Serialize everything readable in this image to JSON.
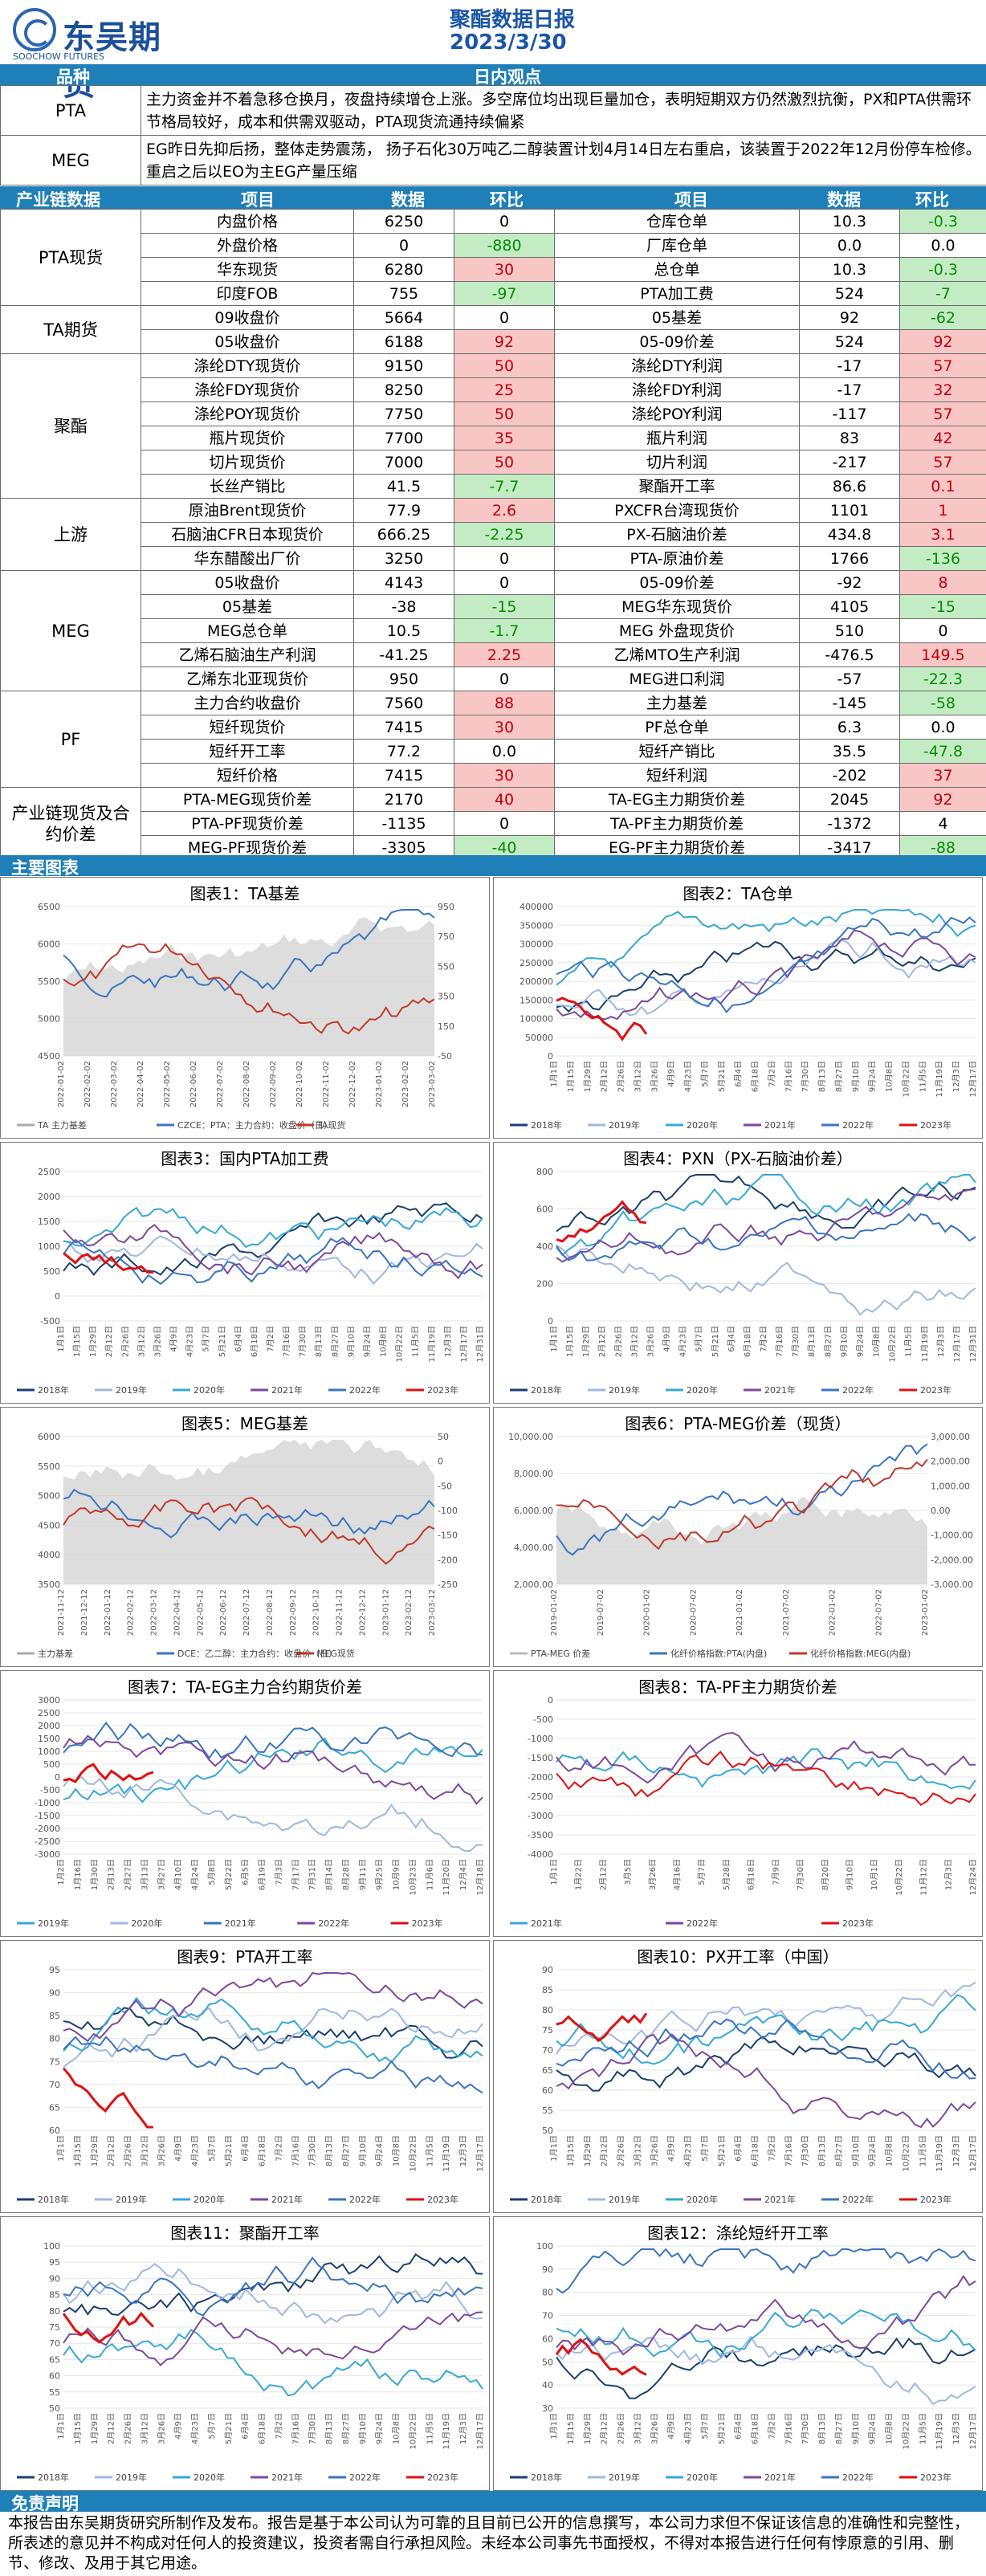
{
  "header": {
    "logo_text": "东吴期货",
    "logo_sub": "SOOCHOW FUTURES",
    "title": "聚酯数据日报",
    "date": "2023/3/30"
  },
  "obs_header": {
    "col1": "品种",
    "col2": "日内观点"
  },
  "observations": [
    {
      "name": "PTA",
      "text": "主力资金并不着急移仓换月，夜盘持续增仓上涨。多空席位均出现巨量加仓，表明短期双方仍然激烈抗衡，PX和PTA供需环节格局较好，成本和供需双驱动，PTA现货流通持续偏紧"
    },
    {
      "name": "MEG",
      "text": "EG昨日先抑后扬，整体走势震荡， 扬子石化30万吨乙二醇装置计划4月14日左右重启，该装置于2022年12月份停车检修。重启之后以EO为主EG产量压缩"
    }
  ],
  "chain_header": {
    "c1": "产业链数据",
    "c2": "项目",
    "c3": "数据",
    "c4": "环比",
    "c5": "项目",
    "c6": "数据",
    "c7": "环比"
  },
  "groups": [
    {
      "name": "PTA现货",
      "rows": [
        [
          "内盘价格",
          "6250",
          "0",
          "",
          "仓库仓单",
          "10.3",
          "-0.3",
          "g"
        ],
        [
          "外盘价格",
          "0",
          "-880",
          "g",
          "厂库仓单",
          "0.0",
          "0.0",
          ""
        ],
        [
          "华东现货",
          "6280",
          "30",
          "r",
          "总仓单",
          "10.3",
          "-0.3",
          "g"
        ],
        [
          "印度FOB",
          "755",
          "-97",
          "g",
          "PTA加工费",
          "524",
          "-7",
          "g"
        ]
      ]
    },
    {
      "name": "TA期货",
      "rows": [
        [
          "09收盘价",
          "5664",
          "0",
          "",
          "05基差",
          "92",
          "-62",
          "g"
        ],
        [
          "05收盘价",
          "6188",
          "92",
          "r",
          "05-09价差",
          "524",
          "92",
          "r"
        ]
      ]
    },
    {
      "name": "聚酯",
      "rows": [
        [
          "涤纶DTY现货价",
          "9150",
          "50",
          "r",
          "涤纶DTY利润",
          "-17",
          "57",
          "r"
        ],
        [
          "涤纶FDY现货价",
          "8250",
          "25",
          "r",
          "涤纶FDY利润",
          "-17",
          "32",
          "r"
        ],
        [
          "涤纶POY现货价",
          "7750",
          "50",
          "r",
          "涤纶POY利润",
          "-117",
          "57",
          "r"
        ],
        [
          "瓶片现货价",
          "7700",
          "35",
          "r",
          "瓶片利润",
          "83",
          "42",
          "r"
        ],
        [
          "切片现货价",
          "7000",
          "50",
          "r",
          "切片利润",
          "-217",
          "57",
          "r"
        ],
        [
          "长丝产销比",
          "41.5",
          "-7.7",
          "g",
          "聚酯开工率",
          "86.6",
          "0.1",
          "r"
        ]
      ]
    },
    {
      "name": "上游",
      "rows": [
        [
          "原油Brent现货价",
          "77.9",
          "2.6",
          "r",
          "PXCFR台湾现货价",
          "1101",
          "1",
          "r"
        ],
        [
          "石脑油CFR日本现货价",
          "666.25",
          "-2.25",
          "g",
          "PX-石脑油价差",
          "434.8",
          "3.1",
          "r"
        ],
        [
          "华东醋酸出厂价",
          "3250",
          "0",
          "",
          "PTA-原油价差",
          "1766",
          "-136",
          "g"
        ]
      ]
    },
    {
      "name": "MEG",
      "rows": [
        [
          "05收盘价",
          "4143",
          "0",
          "",
          "05-09价差",
          "-92",
          "8",
          "r"
        ],
        [
          "05基差",
          "-38",
          "-15",
          "g",
          "MEG华东现货价",
          "4105",
          "-15",
          "g"
        ],
        [
          "MEG总仓单",
          "10.5",
          "-1.7",
          "g",
          "MEG 外盘现货价",
          "510",
          "0",
          ""
        ],
        [
          "乙烯石脑油生产利润",
          "-41.25",
          "2.25",
          "r",
          "乙烯MTO生产利润",
          "-476.5",
          "149.5",
          "r"
        ],
        [
          "乙烯东北亚现货价",
          "950",
          "0",
          "",
          "MEG进口利润",
          "-57",
          "-22.3",
          "g"
        ]
      ]
    },
    {
      "name": "PF",
      "rows": [
        [
          "主力合约收盘价",
          "7560",
          "88",
          "r",
          "主力基差",
          "-145",
          "-58",
          "g"
        ],
        [
          "短纤现货价",
          "7415",
          "30",
          "r",
          "PF总仓单",
          "6.3",
          "0.0",
          ""
        ],
        [
          "短纤开工率",
          "77.2",
          "0.0",
          "",
          "短纤产销比",
          "35.5",
          "-47.8",
          "g"
        ],
        [
          "短纤价格",
          "7415",
          "30",
          "r",
          "短纤利润",
          "-202",
          "37",
          "r"
        ]
      ]
    },
    {
      "name": "产业链现货及合约价差",
      "rows": [
        [
          "PTA-MEG现货价差",
          "2170",
          "40",
          "r",
          "TA-EG主力期货价差",
          "2045",
          "92",
          "r"
        ],
        [
          "PTA-PF现货价差",
          "-1135",
          "0",
          "",
          "TA-PF主力期货价差",
          "-1372",
          "4",
          ""
        ],
        [
          "MEG-PF现货价差",
          "-3305",
          "-40",
          "g",
          "EG-PF主力期货价差",
          "-3417",
          "-88",
          "g"
        ]
      ]
    }
  ],
  "charts_header": "主要图表",
  "charts": [
    {
      "title": "图表1：TA基差",
      "legend": [
        "TA 主力基差",
        "CZCE：PTA：主力合约：收盘价（日）",
        "TA现货"
      ],
      "yleft": [
        "6500",
        "6000",
        "5500",
        "5000",
        "4500"
      ],
      "yright": [
        "950",
        "750",
        "550",
        "350",
        "150",
        "-50"
      ],
      "xlabels": [
        "2022-01-02",
        "2022-02-02",
        "2022-03-02",
        "2022-04-02",
        "2022-05-02",
        "2022-06-02",
        "2022-07-02",
        "2022-08-02",
        "2022-09-02",
        "2022-10-02",
        "2022-11-02",
        "2022-12-02",
        "2023-01-02",
        "2023-02-02",
        "2023-03-02"
      ]
    },
    {
      "title": "图表2：TA仓单",
      "legend": [
        "2018年",
        "2019年",
        "2020年",
        "2021年",
        "2022年",
        "2023年"
      ],
      "yleft": [
        "400000",
        "350000",
        "300000",
        "250000",
        "200000",
        "150000",
        "100000",
        "50000",
        "0"
      ],
      "xlabels": [
        "1月1日",
        "1月15日",
        "1月29日",
        "2月12日",
        "2月26日",
        "3月12日",
        "3月26日",
        "4月9日",
        "4月23日",
        "5月7日",
        "5月21日",
        "6月4日",
        "6月18日",
        "7月2日",
        "7月16日",
        "7月30日",
        "8月13日",
        "8月27日",
        "9月10日",
        "9月24日",
        "10月8日",
        "10月22日",
        "11月5日",
        "11月19日",
        "12月3日",
        "12月17日"
      ]
    },
    {
      "title": "图表3：国内PTA加工费",
      "legend": [
        "2018年",
        "2019年",
        "2020年",
        "2021年",
        "2022年",
        "2023年"
      ],
      "yleft": [
        "2500",
        "2000",
        "1500",
        "1000",
        "500",
        "0",
        "-500"
      ],
      "xlabels": [
        "1月1日",
        "1月15日",
        "1月29日",
        "2月12日",
        "2月26日",
        "3月12日",
        "3月26日",
        "4月9日",
        "4月23日",
        "5月7日",
        "5月21日",
        "6月4日",
        "6月18日",
        "7月2日",
        "7月16日",
        "7月30日",
        "8月13日",
        "8月27日",
        "9月10日",
        "9月24日",
        "10月8日",
        "10月22日",
        "11月5日",
        "11月19日",
        "12月3日",
        "12月17日",
        "12月31日"
      ]
    },
    {
      "title": "图表4：PXN（PX-石脑油价差）",
      "legend": [
        "2018年",
        "2019年",
        "2020年",
        "2021年",
        "2022年",
        "2023年"
      ],
      "yleft": [
        "800",
        "600",
        "400",
        "200",
        "0"
      ],
      "xlabels": [
        "1月1日",
        "1月15日",
        "1月29日",
        "2月12日",
        "2月26日",
        "3月12日",
        "3月26日",
        "4月9日",
        "4月23日",
        "5月7日",
        "5月21日",
        "6月4日",
        "6月18日",
        "7月2日",
        "7月16日",
        "7月30日",
        "8月13日",
        "8月27日",
        "9月10日",
        "9月24日",
        "10月8日",
        "10月22日",
        "11月5日",
        "11月19日",
        "12月3日",
        "12月17日",
        "12月31日"
      ]
    },
    {
      "title": "图表5：MEG基差",
      "legend": [
        "主力基差",
        "DCE：乙二醇：主力合约：收盘价（日）",
        "MEG现货"
      ],
      "yleft": [
        "6000",
        "5500",
        "5000",
        "4500",
        "4000",
        "3500"
      ],
      "yright": [
        "50",
        "0",
        "-50",
        "-100",
        "-150",
        "-200",
        "-250"
      ],
      "xlabels": [
        "2021-11-12",
        "2021-12-12",
        "2022-01-12",
        "2022-02-12",
        "2022-03-12",
        "2022-04-12",
        "2022-05-12",
        "2022-06-12",
        "2022-07-12",
        "2022-08-12",
        "2022-09-12",
        "2022-10-12",
        "2022-11-12",
        "2022-12-12",
        "2023-01-12",
        "2023-02-12",
        "2023-03-12"
      ]
    },
    {
      "title": "图表6：PTA-MEG价差（现货）",
      "legend": [
        "PTA-MEG 价差",
        "化纤价格指数:PTA(内盘)",
        "化纤价格指数:MEG(内盘)"
      ],
      "yleft": [
        "10,000.00",
        "8,000.00",
        "6,000.00",
        "4,000.00",
        "2,000.00"
      ],
      "yright": [
        "3,000.00",
        "2,000.00",
        "1,000.00",
        "0.00",
        "-1,000.00",
        "-2,000.00",
        "-3,000.00"
      ],
      "xlabels": [
        "2019-01-02",
        "2019-07-02",
        "2020-01-02",
        "2020-07-02",
        "2021-01-02",
        "2021-07-02",
        "2022-01-02",
        "2022-07-02",
        "2023-01-02"
      ]
    },
    {
      "title": "图表7：TA-EG主力合约期货价差",
      "legend": [
        "2019年",
        "2020年",
        "2021年",
        "2022年",
        "2023年"
      ],
      "yleft": [
        "3000",
        "2500",
        "2000",
        "1500",
        "1000",
        "500",
        "0",
        "-500",
        "-1000",
        "-1500",
        "-2000",
        "-2500",
        "-3000"
      ],
      "xlabels": [
        "1月2日",
        "1月16日",
        "1月30日",
        "2月13日",
        "2月27日",
        "3月13日",
        "3月27日",
        "4月10日",
        "4月24日",
        "5月8日",
        "5月22日",
        "6月5日",
        "6月19日",
        "7月3日",
        "7月17日",
        "7月31日",
        "8月14日",
        "8月28日",
        "9月11日",
        "9月25日",
        "10月9日",
        "10月23日",
        "11月6日",
        "11月20日",
        "12月4日",
        "12月18日"
      ]
    },
    {
      "title": "图表8：TA-PF主力期货价差",
      "legend": [
        "2021年",
        "2022年",
        "2023年"
      ],
      "yleft": [
        "0",
        "-500",
        "-1000",
        "-1500",
        "-2000",
        "-2500",
        "-3000",
        "-3500",
        "-4000"
      ],
      "xlabels": [
        "1月1日",
        "1月22日",
        "2月12日",
        "3月5日",
        "3月26日",
        "4月16日",
        "5月7日",
        "5月28日",
        "6月18日",
        "7月9日",
        "7月30日",
        "8月20日",
        "9月10日",
        "10月1日",
        "10月22日",
        "11月12日",
        "12月3日",
        "12月24日"
      ]
    },
    {
      "title": "图表9：PTA开工率",
      "legend": [
        "2018年",
        "2019年",
        "2020年",
        "2021年",
        "2022年",
        "2023年"
      ],
      "yleft": [
        "95",
        "90",
        "85",
        "80",
        "75",
        "70",
        "65",
        "60"
      ],
      "xlabels": [
        "1月1日",
        "1月15日",
        "1月29日",
        "2月12日",
        "2月26日",
        "3月12日",
        "3月26日",
        "4月9日",
        "4月23日",
        "5月7日",
        "5月21日",
        "6月4日",
        "6月18日",
        "7月2日",
        "7月16日",
        "7月30日",
        "8月13日",
        "8月27日",
        "9月10日",
        "9月24日",
        "10月8日",
        "10月22日",
        "11月5日",
        "11月19日",
        "12月3日",
        "12月17日"
      ]
    },
    {
      "title": "图表10：PX开工率（中国）",
      "legend": [
        "2018年",
        "2019年",
        "2020年",
        "2021年",
        "2022年",
        "2023年"
      ],
      "yleft": [
        "90",
        "85",
        "80",
        "75",
        "70",
        "65",
        "60",
        "55",
        "50"
      ],
      "xlabels": [
        "1月1日",
        "1月15日",
        "1月29日",
        "2月12日",
        "2月26日",
        "3月12日",
        "3月26日",
        "4月9日",
        "4月23日",
        "5月7日",
        "5月21日",
        "6月4日",
        "6月18日",
        "7月2日",
        "7月16日",
        "7月30日",
        "8月13日",
        "8月27日",
        "9月10日",
        "9月24日",
        "10月8日",
        "10月22日",
        "11月5日",
        "11月19日",
        "12月3日",
        "12月17日"
      ]
    },
    {
      "title": "图表11：聚酯开工率",
      "legend": [
        "2018年",
        "2019年",
        "2020年",
        "2021年",
        "2022年",
        "2023年"
      ],
      "yleft": [
        "100",
        "95",
        "90",
        "85",
        "80",
        "75",
        "70",
        "65",
        "60",
        "55",
        "50"
      ],
      "xlabels": [
        "1月1日",
        "1月15日",
        "1月29日",
        "2月12日",
        "2月26日",
        "3月12日",
        "3月26日",
        "4月9日",
        "4月23日",
        "5月7日",
        "5月21日",
        "6月4日",
        "6月18日",
        "7月2日",
        "7月16日",
        "7月30日",
        "8月13日",
        "8月27日",
        "9月10日",
        "9月24日",
        "10月8日",
        "10月22日",
        "11月5日",
        "11月19日",
        "12月3日",
        "12月17日"
      ]
    },
    {
      "title": "图表12：涤纶短纤开工率",
      "legend": [
        "2018年",
        "2019年",
        "2020年",
        "2021年",
        "2022年",
        "2023年"
      ],
      "yleft": [
        "100",
        "90",
        "80",
        "70",
        "60",
        "50",
        "40",
        "30"
      ],
      "xlabels": [
        "1月1日",
        "1月15日",
        "1月29日",
        "2月12日",
        "2月26日",
        "3月12日",
        "3月26日",
        "4月9日",
        "4月23日",
        "5月7日",
        "5月21日",
        "6月4日",
        "6月18日",
        "7月2日",
        "7月16日",
        "7月30日",
        "8月13日",
        "8月27日",
        "9月10日",
        "9月24日",
        "10月8日",
        "10月22日",
        "11月5日",
        "11月19日",
        "12月3日",
        "12月17日"
      ]
    }
  ],
  "colors": {
    "bar": "#1f7fb8",
    "red_bg": "#f9c6c6",
    "red_text": "#c0000b",
    "green_bg": "#c4ecc4",
    "green_text": "#058a05",
    "brand": "#1b4f9a"
  },
  "series_colors": [
    "#1b3f6e",
    "#9fb8e0",
    "#36a8d8",
    "#7a4a9e",
    "#3a74c0",
    "#e01010"
  ],
  "disclaimer": {
    "title": "免责声明",
    "text": "本报告由东吴期货研究所制作及发布。报告是基于本公司认为可靠的且目前已公开的信息撰写，本公司力求但不保证该信息的准确性和完整性，所表述的意见并不构成对任何人的投资建议，投资者需自行承担风险。未经本公司事先书面授权，不得对本报告进行任何有悖原意的引用、删节、修改、及用于其它用途。"
  }
}
